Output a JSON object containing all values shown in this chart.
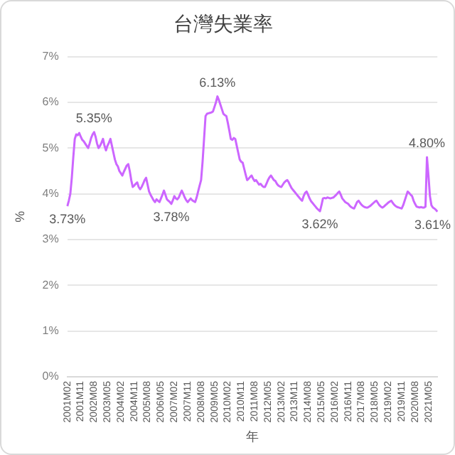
{
  "chart_data": {
    "type": "line",
    "title": "台灣失業率",
    "xlabel": "年",
    "ylabel": "%",
    "categories": [
      "2001M02",
      null,
      null,
      null,
      null,
      null,
      null,
      null,
      null,
      "2001M11",
      null,
      null,
      null,
      null,
      null,
      null,
      null,
      null,
      "2002M08",
      null,
      null,
      null,
      null,
      null,
      null,
      null,
      null,
      "2003M05",
      null,
      null,
      null,
      null,
      null,
      null,
      null,
      null,
      "2004M02",
      null,
      null,
      null,
      null,
      null,
      null,
      null,
      null,
      "2004M11",
      null,
      null,
      null,
      null,
      null,
      null,
      null,
      null,
      "2005M08",
      null,
      null,
      null,
      null,
      null,
      null,
      null,
      null,
      "2006M05",
      null,
      null,
      null,
      null,
      null,
      null,
      null,
      null,
      "2007M02",
      null,
      null,
      null,
      null,
      null,
      null,
      null,
      null,
      "2007M11",
      null,
      null,
      null,
      null,
      null,
      null,
      null,
      null,
      "2008M08",
      null,
      null,
      null,
      null,
      null,
      null,
      null,
      null,
      "2009M05",
      null,
      null,
      null,
      null,
      null,
      null,
      null,
      null,
      "2010M02",
      null,
      null,
      null,
      null,
      null,
      null,
      null,
      null,
      "2010M11",
      null,
      null,
      null,
      null,
      null,
      null,
      null,
      null,
      "2011M08",
      null,
      null,
      null,
      null,
      null,
      null,
      null,
      null,
      "2012M05",
      null,
      null,
      null,
      null,
      null,
      null,
      null,
      null,
      "2013M02",
      null,
      null,
      null,
      null,
      null,
      null,
      null,
      null,
      "2013M11",
      null,
      null,
      null,
      null,
      null,
      null,
      null,
      null,
      "2014M08",
      null,
      null,
      null,
      null,
      null,
      null,
      null,
      null,
      "2015M05",
      null,
      null,
      null,
      null,
      null,
      null,
      null,
      null,
      "2016M02",
      null,
      null,
      null,
      null,
      null,
      null,
      null,
      null,
      "2016M11",
      null,
      null,
      null,
      null,
      null,
      null,
      null,
      null,
      "2017M08",
      null,
      null,
      null,
      null,
      null,
      null,
      null,
      null,
      "2018M05",
      null,
      null,
      null,
      null,
      null,
      null,
      null,
      null,
      "2019M02",
      null,
      null,
      null,
      null,
      null,
      null,
      null,
      null,
      "2019M11",
      null,
      null,
      null,
      null,
      null,
      null,
      null,
      null,
      "2020M08",
      null,
      null,
      null,
      null,
      null,
      null,
      null,
      null,
      "2021M05",
      null,
      null,
      null,
      null,
      null,
      null
    ],
    "values": [
      3.73,
      3.85,
      4.0,
      4.35,
      4.8,
      5.2,
      5.3,
      5.28,
      5.33,
      5.25,
      5.18,
      5.15,
      5.1,
      5.05,
      5.0,
      5.1,
      5.22,
      5.3,
      5.35,
      5.25,
      5.1,
      5.0,
      5.05,
      5.12,
      5.2,
      5.05,
      4.95,
      5.05,
      5.12,
      5.2,
      5.05,
      4.9,
      4.75,
      4.65,
      4.6,
      4.5,
      4.45,
      4.4,
      4.48,
      4.55,
      4.62,
      4.65,
      4.5,
      4.3,
      4.15,
      4.18,
      4.22,
      4.25,
      4.15,
      4.1,
      4.15,
      4.22,
      4.3,
      4.35,
      4.2,
      4.05,
      3.98,
      3.92,
      3.86,
      3.82,
      3.88,
      3.85,
      3.82,
      3.9,
      3.98,
      4.07,
      3.98,
      3.88,
      3.85,
      3.82,
      3.78,
      3.86,
      3.95,
      3.9,
      3.88,
      3.92,
      4.0,
      4.07,
      4.0,
      3.92,
      3.86,
      3.82,
      3.86,
      3.9,
      3.86,
      3.84,
      3.82,
      3.92,
      4.05,
      4.18,
      4.3,
      4.7,
      5.2,
      5.7,
      5.75,
      5.76,
      5.77,
      5.78,
      5.8,
      5.9,
      6.0,
      6.13,
      6.05,
      5.95,
      5.85,
      5.75,
      5.72,
      5.7,
      5.55,
      5.38,
      5.2,
      5.18,
      5.22,
      5.2,
      5.05,
      4.9,
      4.75,
      4.7,
      4.68,
      4.55,
      4.42,
      4.3,
      4.33,
      4.37,
      4.4,
      4.33,
      4.28,
      4.3,
      4.25,
      4.2,
      4.22,
      4.18,
      4.15,
      4.15,
      4.22,
      4.3,
      4.36,
      4.4,
      4.35,
      4.3,
      4.28,
      4.22,
      4.18,
      4.16,
      4.15,
      4.2,
      4.25,
      4.28,
      4.3,
      4.25,
      4.18,
      4.12,
      4.08,
      4.04,
      4.0,
      3.96,
      3.92,
      3.88,
      3.85,
      3.95,
      4.02,
      4.05,
      3.98,
      3.9,
      3.84,
      3.8,
      3.76,
      3.72,
      3.68,
      3.65,
      3.62,
      3.75,
      3.9,
      3.91,
      3.9,
      3.92,
      3.91,
      3.9,
      3.91,
      3.92,
      3.95,
      3.98,
      4.02,
      4.05,
      3.98,
      3.9,
      3.86,
      3.82,
      3.8,
      3.78,
      3.74,
      3.71,
      3.69,
      3.68,
      3.75,
      3.82,
      3.85,
      3.8,
      3.76,
      3.73,
      3.71,
      3.7,
      3.7,
      3.72,
      3.74,
      3.77,
      3.8,
      3.83,
      3.85,
      3.8,
      3.75,
      3.72,
      3.7,
      3.72,
      3.75,
      3.78,
      3.81,
      3.83,
      3.85,
      3.8,
      3.76,
      3.73,
      3.71,
      3.7,
      3.69,
      3.68,
      3.75,
      3.85,
      3.95,
      4.05,
      4.02,
      3.98,
      3.95,
      3.85,
      3.78,
      3.72,
      3.71,
      3.7,
      3.71,
      3.7,
      3.7,
      3.72,
      4.8,
      4.4,
      3.95,
      3.75,
      3.7,
      3.68,
      3.65,
      3.61
    ],
    "value_labels": [
      "3.73%",
      null,
      null,
      null,
      null,
      null,
      null,
      null,
      null,
      null,
      null,
      null,
      null,
      null,
      null,
      null,
      null,
      null,
      "5.35%",
      null,
      null,
      null,
      null,
      null,
      null,
      null,
      null,
      null,
      null,
      null,
      null,
      null,
      null,
      null,
      null,
      null,
      null,
      null,
      null,
      null,
      null,
      null,
      null,
      null,
      null,
      null,
      null,
      null,
      null,
      null,
      null,
      null,
      null,
      null,
      null,
      null,
      null,
      null,
      null,
      null,
      null,
      null,
      null,
      null,
      null,
      null,
      null,
      null,
      null,
      null,
      "3.78%",
      null,
      null,
      null,
      null,
      null,
      null,
      null,
      null,
      null,
      null,
      null,
      null,
      null,
      null,
      null,
      null,
      null,
      null,
      null,
      null,
      null,
      null,
      null,
      null,
      null,
      null,
      null,
      null,
      null,
      null,
      "6.13%",
      null,
      null,
      null,
      null,
      null,
      null,
      null,
      null,
      null,
      null,
      null,
      null,
      null,
      null,
      null,
      null,
      null,
      null,
      null,
      null,
      null,
      null,
      null,
      null,
      null,
      null,
      null,
      null,
      null,
      null,
      null,
      null,
      null,
      null,
      null,
      null,
      null,
      null,
      null,
      null,
      null,
      null,
      null,
      null,
      null,
      null,
      null,
      null,
      null,
      null,
      null,
      null,
      null,
      null,
      null,
      null,
      null,
      null,
      null,
      null,
      null,
      null,
      null,
      null,
      null,
      null,
      null,
      null,
      "3.62%",
      null,
      null,
      null,
      null,
      null,
      null,
      null,
      null,
      null,
      null,
      null,
      null,
      null,
      null,
      null,
      null,
      null,
      null,
      null,
      null,
      null,
      null,
      null,
      null,
      null,
      null,
      null,
      null,
      null,
      null,
      null,
      null,
      null,
      null,
      null,
      null,
      null,
      null,
      null,
      null,
      null,
      null,
      null,
      null,
      null,
      null,
      null,
      null,
      null,
      null,
      null,
      null,
      null,
      null,
      null,
      null,
      null,
      null,
      null,
      null,
      null,
      null,
      null,
      null,
      null,
      null,
      null,
      null,
      null,
      null,
      null,
      "4.80%",
      null,
      null,
      null,
      null,
      null,
      null,
      "3.61%"
    ],
    "color": "#cc66ff",
    "ylim": [
      0,
      7
    ],
    "yticks": [
      {
        "value": 0,
        "label": "0%"
      },
      {
        "value": 1,
        "label": "1%"
      },
      {
        "value": 2,
        "label": "2%"
      },
      {
        "value": 3,
        "label": "3%"
      },
      {
        "value": 4,
        "label": "4%"
      },
      {
        "value": 5,
        "label": "5%"
      },
      {
        "value": 6,
        "label": "6%"
      },
      {
        "value": 7,
        "label": "7%"
      }
    ],
    "grid": "y",
    "marker": "none"
  }
}
